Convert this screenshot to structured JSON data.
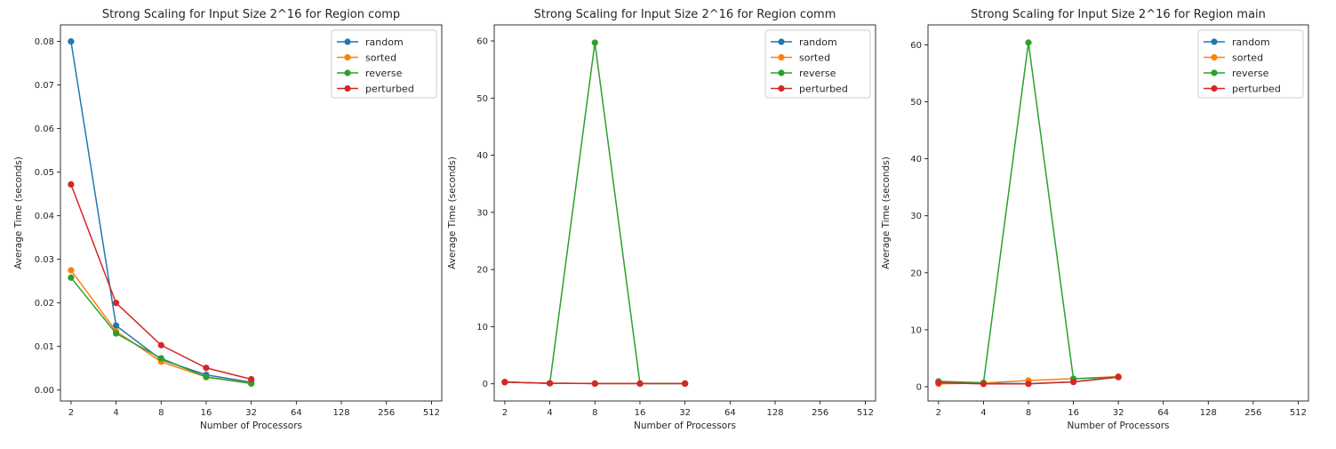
{
  "chart_data": [
    {
      "type": "line",
      "title": "Strong Scaling for Input Size 2^16 for Region comp",
      "xlabel": "Number of Processors",
      "ylabel": "Average Time (seconds)",
      "x_scale": "log2",
      "x_ticks": [
        "2",
        "4",
        "8",
        "16",
        "32",
        "64",
        "128",
        "256",
        "512"
      ],
      "y_ticks": [
        "0.00",
        "0.01",
        "0.02",
        "0.03",
        "0.04",
        "0.05",
        "0.06",
        "0.07",
        "0.08"
      ],
      "xlim": [
        1.7,
        600
      ],
      "ylim": [
        -0.0025,
        0.0838
      ],
      "legend": "top-right",
      "x": [
        2,
        4,
        8,
        16,
        32
      ],
      "series": [
        {
          "name": "random",
          "color": "#1f77b4",
          "values": [
            0.08,
            0.0148,
            0.007,
            0.0035,
            0.0018
          ]
        },
        {
          "name": "sorted",
          "color": "#ff7f0e",
          "values": [
            0.0275,
            0.0135,
            0.0065,
            0.003,
            0.0016
          ]
        },
        {
          "name": "reverse",
          "color": "#2ca02c",
          "values": [
            0.0258,
            0.013,
            0.0073,
            0.003,
            0.0015
          ]
        },
        {
          "name": "perturbed",
          "color": "#d62728",
          "values": [
            0.0472,
            0.02,
            0.0103,
            0.0051,
            0.0025
          ]
        }
      ]
    },
    {
      "type": "line",
      "title": "Strong Scaling for Input Size 2^16 for Region comm",
      "xlabel": "Number of Processors",
      "ylabel": "Average Time (seconds)",
      "x_scale": "log2",
      "x_ticks": [
        "2",
        "4",
        "8",
        "16",
        "32",
        "64",
        "128",
        "256",
        "512"
      ],
      "y_ticks": [
        "0",
        "10",
        "20",
        "30",
        "40",
        "50",
        "60"
      ],
      "xlim": [
        1.7,
        600
      ],
      "ylim": [
        -3.0,
        62.8
      ],
      "legend": "top-right",
      "x": [
        2,
        4,
        8,
        16,
        32
      ],
      "series": [
        {
          "name": "random",
          "color": "#1f77b4",
          "values": [
            0.3,
            0.1,
            0.05,
            0.05,
            0.05
          ]
        },
        {
          "name": "sorted",
          "color": "#ff7f0e",
          "values": [
            0.3,
            0.1,
            0.05,
            0.05,
            0.05
          ]
        },
        {
          "name": "reverse",
          "color": "#2ca02c",
          "values": [
            0.3,
            0.1,
            59.7,
            0.05,
            0.05
          ]
        },
        {
          "name": "perturbed",
          "color": "#d62728",
          "values": [
            0.3,
            0.1,
            0.05,
            0.05,
            0.05
          ]
        }
      ]
    },
    {
      "type": "line",
      "title": "Strong Scaling for Input Size 2^16 for Region main",
      "xlabel": "Number of Processors",
      "ylabel": "Average Time (seconds)",
      "x_scale": "log2",
      "x_ticks": [
        "2",
        "4",
        "8",
        "16",
        "32",
        "64",
        "128",
        "256",
        "512"
      ],
      "y_ticks": [
        "0",
        "10",
        "20",
        "30",
        "40",
        "50",
        "60"
      ],
      "xlim": [
        1.7,
        600
      ],
      "ylim": [
        -2.5,
        63.5
      ],
      "legend": "top-right",
      "x": [
        2,
        4,
        8,
        16,
        32
      ],
      "series": [
        {
          "name": "random",
          "color": "#1f77b4",
          "values": [
            0.8,
            0.6,
            0.55,
            0.85,
            1.7
          ]
        },
        {
          "name": "sorted",
          "color": "#ff7f0e",
          "values": [
            0.5,
            0.65,
            1.1,
            1.4,
            1.8
          ]
        },
        {
          "name": "reverse",
          "color": "#2ca02c",
          "values": [
            0.95,
            0.7,
            60.4,
            1.4,
            1.7
          ]
        },
        {
          "name": "perturbed",
          "color": "#d62728",
          "values": [
            0.7,
            0.5,
            0.5,
            0.85,
            1.7
          ]
        }
      ]
    }
  ]
}
